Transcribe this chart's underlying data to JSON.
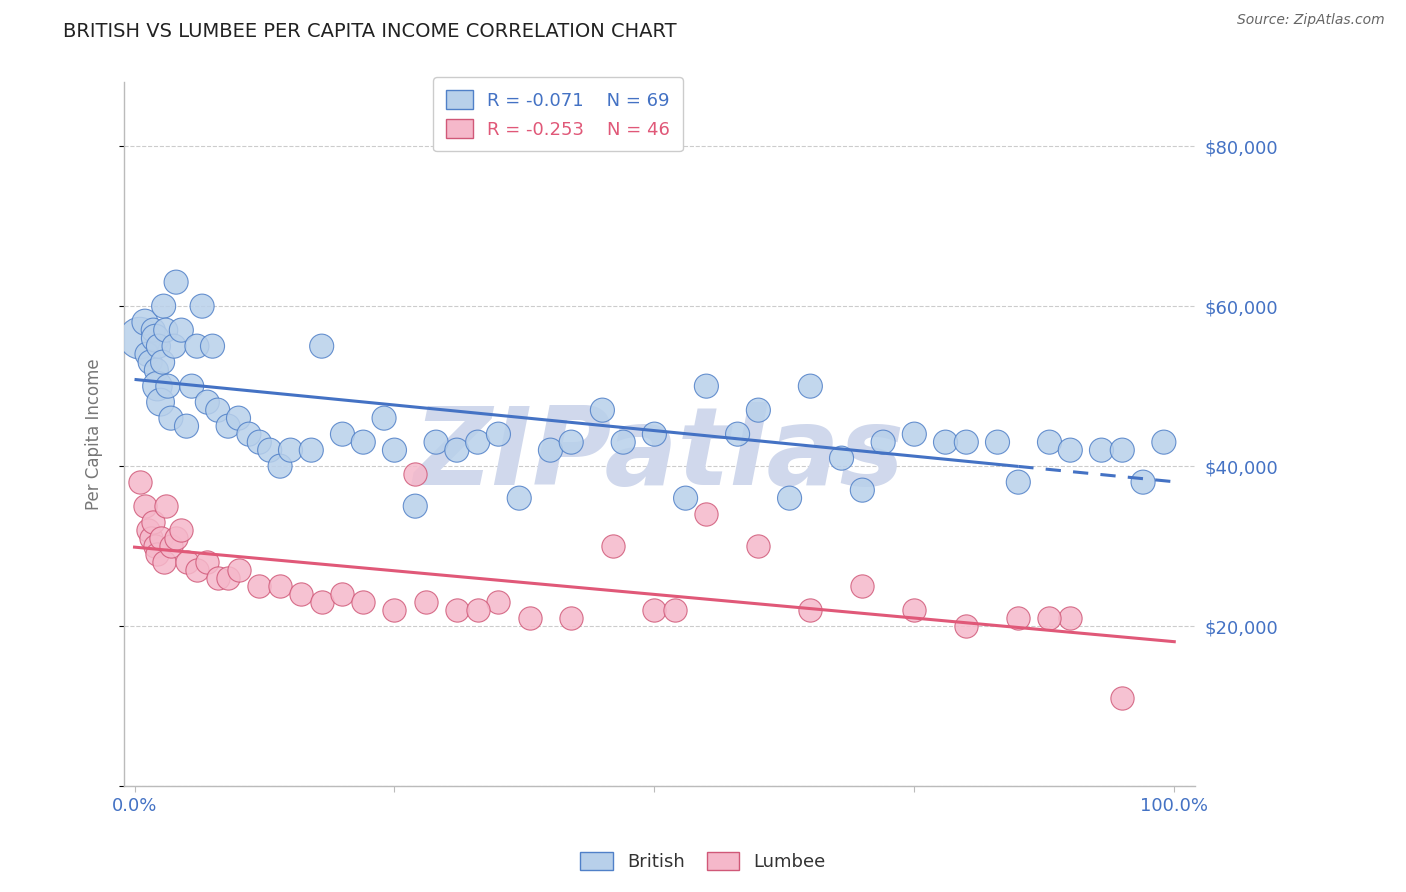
{
  "title": "BRITISH VS LUMBEE PER CAPITA INCOME CORRELATION CHART",
  "source": "Source: ZipAtlas.com",
  "ylabel": "Per Capita Income",
  "ylim": [
    0,
    88000
  ],
  "yticks": [
    0,
    20000,
    40000,
    60000,
    80000
  ],
  "ytick_labels": [
    "",
    "$20,000",
    "$40,000",
    "$60,000",
    "$80,000"
  ],
  "british_R": -0.071,
  "british_N": 69,
  "lumbee_R": -0.253,
  "lumbee_N": 46,
  "british_color": "#b8d0ea",
  "british_edge_color": "#5080c8",
  "british_line_color": "#4472c4",
  "lumbee_color": "#f5b8ca",
  "lumbee_edge_color": "#d05878",
  "lumbee_line_color": "#e05878",
  "background_color": "#ffffff",
  "grid_color": "#cccccc",
  "title_color": "#222222",
  "axis_label_color": "#777777",
  "tick_color": "#4472c4",
  "watermark": "ZIPatlas",
  "watermark_color": "#d0d8ec",
  "british_x": [
    0.5,
    1.0,
    1.2,
    1.5,
    1.8,
    2.0,
    2.1,
    2.2,
    2.3,
    2.5,
    2.7,
    2.8,
    3.0,
    3.2,
    3.5,
    3.8,
    4.0,
    4.5,
    5.0,
    5.5,
    6.0,
    6.5,
    7.0,
    7.5,
    8.0,
    9.0,
    10.0,
    11.0,
    12.0,
    13.0,
    14.0,
    15.0,
    17.0,
    18.0,
    20.0,
    22.0,
    24.0,
    25.0,
    27.0,
    29.0,
    31.0,
    33.0,
    35.0,
    37.0,
    40.0,
    42.0,
    45.0,
    47.0,
    50.0,
    53.0,
    55.0,
    58.0,
    60.0,
    63.0,
    65.0,
    68.0,
    70.0,
    72.0,
    75.0,
    78.0,
    80.0,
    83.0,
    85.0,
    88.0,
    90.0,
    93.0,
    95.0,
    97.0,
    99.0
  ],
  "british_y": [
    56000,
    58000,
    54000,
    53000,
    57000,
    56000,
    52000,
    50000,
    55000,
    48000,
    53000,
    60000,
    57000,
    50000,
    46000,
    55000,
    63000,
    57000,
    45000,
    50000,
    55000,
    60000,
    48000,
    55000,
    47000,
    45000,
    46000,
    44000,
    43000,
    42000,
    40000,
    42000,
    42000,
    55000,
    44000,
    43000,
    46000,
    42000,
    35000,
    43000,
    42000,
    43000,
    44000,
    36000,
    42000,
    43000,
    47000,
    43000,
    44000,
    36000,
    50000,
    44000,
    47000,
    36000,
    50000,
    41000,
    37000,
    43000,
    44000,
    43000,
    43000,
    43000,
    38000,
    43000,
    42000,
    42000,
    42000,
    38000,
    43000
  ],
  "british_sizes": [
    900,
    350,
    300,
    300,
    300,
    400,
    300,
    450,
    300,
    400,
    300,
    300,
    300,
    300,
    300,
    300,
    300,
    300,
    300,
    300,
    300,
    300,
    300,
    300,
    300,
    300,
    300,
    300,
    300,
    300,
    300,
    300,
    300,
    300,
    300,
    300,
    300,
    300,
    300,
    300,
    300,
    300,
    300,
    300,
    300,
    300,
    300,
    300,
    300,
    300,
    300,
    300,
    300,
    300,
    300,
    300,
    300,
    300,
    300,
    300,
    300,
    300,
    300,
    300,
    300,
    300,
    300,
    300,
    300
  ],
  "lumbee_x": [
    0.5,
    1.0,
    1.3,
    1.6,
    1.8,
    2.0,
    2.2,
    2.5,
    2.8,
    3.0,
    3.5,
    4.0,
    4.5,
    5.0,
    6.0,
    7.0,
    8.0,
    9.0,
    10.0,
    12.0,
    14.0,
    16.0,
    18.0,
    20.0,
    22.0,
    25.0,
    28.0,
    31.0,
    35.0,
    38.0,
    42.0,
    46.0,
    50.0,
    55.0,
    60.0,
    65.0,
    70.0,
    75.0,
    80.0,
    85.0,
    90.0,
    95.0,
    27.0,
    33.0,
    52.0,
    88.0
  ],
  "lumbee_y": [
    38000,
    35000,
    32000,
    31000,
    33000,
    30000,
    29000,
    31000,
    28000,
    35000,
    30000,
    31000,
    32000,
    28000,
    27000,
    28000,
    26000,
    26000,
    27000,
    25000,
    25000,
    24000,
    23000,
    24000,
    23000,
    22000,
    23000,
    22000,
    23000,
    21000,
    21000,
    30000,
    22000,
    34000,
    30000,
    22000,
    25000,
    22000,
    20000,
    21000,
    21000,
    11000,
    39000,
    22000,
    22000,
    21000
  ]
}
